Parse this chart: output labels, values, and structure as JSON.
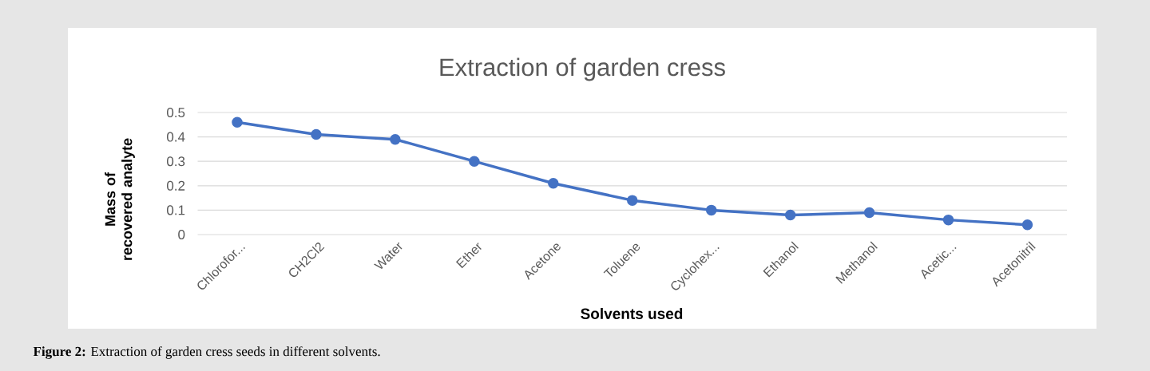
{
  "chart_data": {
    "type": "line",
    "title": "Extraction of garden cress",
    "xlabel": "Solvents used",
    "ylabel": "Mass of recovered analyte",
    "categories": [
      "Chlorofor...",
      "CH2Cl2",
      "Water",
      "Ether",
      "Acetone",
      "Toluene",
      "Cyclohex...",
      "Ethanol",
      "Methanol",
      "Acetic...",
      "Acetonitril"
    ],
    "series": [
      {
        "color": "#4472c4",
        "values": [
          0.46,
          0.41,
          0.39,
          0.3,
          0.21,
          0.14,
          0.1,
          0.08,
          0.09,
          0.06,
          0.04
        ]
      }
    ],
    "ylim": [
      0,
      0.5
    ],
    "yticks": [
      0,
      0.1,
      0.2,
      0.3,
      0.4,
      0.5
    ],
    "grid": "y",
    "marker": "circle",
    "line_style": "solid",
    "annotations": [
      "**Figure 2:** Extraction of garden cress seeds in different solvents."
    ]
  }
}
